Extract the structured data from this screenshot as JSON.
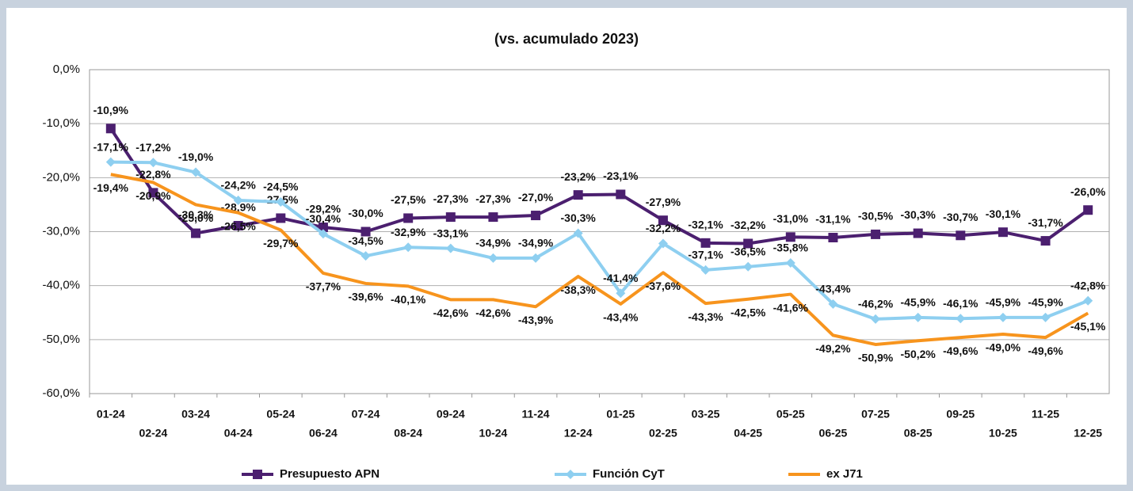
{
  "chart_data": {
    "type": "line",
    "subtitle": "(vs. acumulado 2023)",
    "categories": [
      "01-24",
      "02-24",
      "03-24",
      "04-24",
      "05-24",
      "06-24",
      "07-24",
      "08-24",
      "09-24",
      "10-24",
      "11-24",
      "12-24",
      "01-25",
      "02-25",
      "03-25",
      "04-25",
      "05-25",
      "06-25",
      "07-25",
      "08-25",
      "09-25",
      "10-25",
      "11-25",
      "12-25"
    ],
    "series": [
      {
        "name": "Presupuesto APN",
        "color": "#4b1f6f",
        "marker": "square",
        "values": [
          -10.9,
          -22.8,
          -30.3,
          -28.9,
          -27.5,
          -29.2,
          -30.0,
          -27.5,
          -27.3,
          -27.3,
          -27.0,
          -23.2,
          -23.1,
          -27.9,
          -32.1,
          -32.2,
          -31.0,
          -31.1,
          -30.5,
          -30.3,
          -30.7,
          -30.1,
          -31.7,
          -26.0
        ],
        "value_labels": [
          "-10,9%",
          "-22,8%",
          "-30,3%",
          "-28,9%",
          "-27,5%",
          "-29,2%",
          "-30,0%",
          "-27,5%",
          "-27,3%",
          "-27,3%",
          "-27,0%",
          "-23,2%",
          "-23,1%",
          "-27,9%",
          "-32,1%",
          "-32,2%",
          "-31,0%",
          "-31,1%",
          "-30,5%",
          "-30,3%",
          "-30,7%",
          "-30,1%",
          "-31,7%",
          "-26,0%"
        ]
      },
      {
        "name": "Función CyT",
        "color": "#8ecff0",
        "marker": "diamond",
        "values": [
          -17.1,
          -17.2,
          -19.0,
          -24.2,
          -24.5,
          -30.4,
          -34.5,
          -32.9,
          -33.1,
          -34.9,
          -34.9,
          -30.3,
          -41.4,
          -32.2,
          -37.1,
          -36.5,
          -35.8,
          -43.4,
          -46.2,
          -45.9,
          -46.1,
          -45.9,
          -45.9,
          -42.8
        ],
        "value_labels": [
          "-17,1%",
          "-17,2%",
          "-19,0%",
          "-24,2%",
          "-24,5%",
          "-30,4%",
          "-34,5%",
          "-32,9%",
          "-33,1%",
          "-34,9%",
          "-34,9%",
          "-30,3%",
          "-41,4%",
          "-32,2%",
          "-37,1%",
          "-36,5%",
          "-35,8%",
          "-43,4%",
          "-46,2%",
          "-45,9%",
          "-46,1%",
          "-45,9%",
          "-45,9%",
          "-42,8%"
        ]
      },
      {
        "name": "ex J71",
        "color": "#f7941d",
        "marker": "none",
        "values": [
          -19.4,
          -20.9,
          -25.0,
          -26.5,
          -29.7,
          -37.7,
          -39.6,
          -40.1,
          -42.6,
          -42.6,
          -43.9,
          -38.3,
          -43.4,
          -37.6,
          -43.3,
          -42.5,
          -41.6,
          -49.2,
          -50.9,
          -50.2,
          -49.6,
          -49.0,
          -49.6,
          -45.1
        ],
        "value_labels": [
          "-19,4%",
          "-20,9%",
          "-25,0%",
          "-26,5%",
          "-29,7%",
          "-37,7%",
          "-39,6%",
          "-40,1%",
          "-42,6%",
          "-42,6%",
          "-43,9%",
          "-38,3%",
          "-43,4%",
          "-37,6%",
          "-43,3%",
          "-42,5%",
          "-41,6%",
          "-49,2%",
          "-50,9%",
          "-50,2%",
          "-49,6%",
          "-49,0%",
          "-49,6%",
          "-45,1%"
        ]
      }
    ],
    "ylim": [
      -60,
      0
    ],
    "yticks": [
      {
        "value": 0,
        "label": "0,0%"
      },
      {
        "value": -10,
        "label": "-10,0%"
      },
      {
        "value": -20,
        "label": "-20,0%"
      },
      {
        "value": -30,
        "label": "-30,0%"
      },
      {
        "value": -40,
        "label": "-40,0%"
      },
      {
        "value": -50,
        "label": "-50,0%"
      },
      {
        "value": -60,
        "label": "-60,0%"
      }
    ],
    "grid": true,
    "legend": "bottom"
  }
}
